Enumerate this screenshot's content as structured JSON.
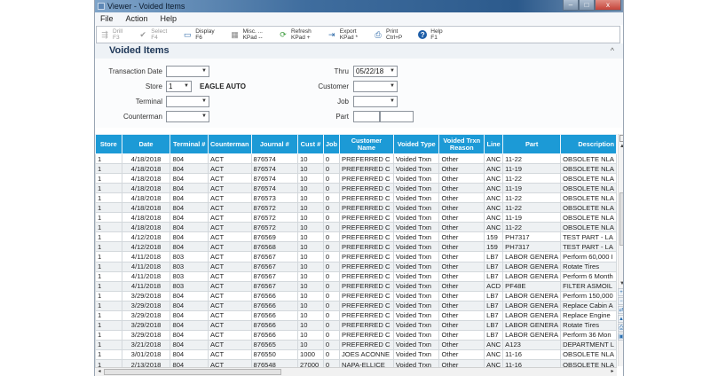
{
  "window": {
    "title": "Viewer - Voided Items",
    "controls": {
      "minimize": "–",
      "maximize": "□",
      "close": "x"
    }
  },
  "menu": [
    "File",
    "Action",
    "Help"
  ],
  "toolbar": [
    {
      "label": "Drill",
      "key": "F3",
      "icon": "drill-icon",
      "glyph": "⇶",
      "disabled": true
    },
    {
      "label": "Select",
      "key": "F4",
      "icon": "checkmark-icon",
      "glyph": "✔",
      "disabled": true
    },
    {
      "label": "Display",
      "key": "F6",
      "icon": "display-icon",
      "glyph": "▭"
    },
    {
      "label": "Misc. ...",
      "key": "KPad --",
      "icon": "grid-icon",
      "glyph": "▦"
    },
    {
      "label": "Refresh",
      "key": "KPad +",
      "icon": "refresh-icon",
      "glyph": "⟳"
    },
    {
      "label": "Export",
      "key": "KPad *",
      "icon": "export-icon",
      "glyph": "⇥"
    },
    {
      "label": "Print",
      "key": "Ctrl+P",
      "icon": "print-icon",
      "glyph": "⎙"
    },
    {
      "label": "Help",
      "key": "F1",
      "icon": "help-icon",
      "glyph": "?"
    }
  ],
  "section": {
    "title": "Voided Items",
    "collapse_glyph": "^"
  },
  "filters": {
    "transaction_date": {
      "label": "Transaction Date",
      "value": ""
    },
    "thru": {
      "label": "Thru",
      "value": "05/22/18"
    },
    "store": {
      "label": "Store",
      "value": "1",
      "name": "EAGLE AUTO"
    },
    "customer": {
      "label": "Customer",
      "value": ""
    },
    "terminal": {
      "label": "Terminal",
      "value": ""
    },
    "job": {
      "label": "Job",
      "value": ""
    },
    "counterman": {
      "label": "Counterman",
      "value": ""
    },
    "part": {
      "label": "Part",
      "value1": "",
      "value2": ""
    },
    "dropdown_glyph": "▼"
  },
  "grid": {
    "columns": [
      "Store",
      "Date",
      "Terminal #",
      "Counterman",
      "Journal #",
      "Cust #",
      "Job",
      "Customer Name",
      "Voided Type",
      "Voided Trxn Reason",
      "Line",
      "Part",
      "Description"
    ],
    "rows": [
      [
        "1",
        "4/18/2018",
        "804",
        "ACT",
        "876574",
        "10",
        "0",
        "PREFERRED C",
        "Voided Trxn",
        "Other",
        "ANC",
        "11-22",
        "OBSOLETE NLA"
      ],
      [
        "1",
        "4/18/2018",
        "804",
        "ACT",
        "876574",
        "10",
        "0",
        "PREFERRED C",
        "Voided Trxn",
        "Other",
        "ANC",
        "11-19",
        "OBSOLETE NLA"
      ],
      [
        "1",
        "4/18/2018",
        "804",
        "ACT",
        "876574",
        "10",
        "0",
        "PREFERRED C",
        "Voided Trxn",
        "Other",
        "ANC",
        "11-22",
        "OBSOLETE NLA"
      ],
      [
        "1",
        "4/18/2018",
        "804",
        "ACT",
        "876574",
        "10",
        "0",
        "PREFERRED C",
        "Voided Trxn",
        "Other",
        "ANC",
        "11-19",
        "OBSOLETE NLA"
      ],
      [
        "1",
        "4/18/2018",
        "804",
        "ACT",
        "876573",
        "10",
        "0",
        "PREFERRED C",
        "Voided Trxn",
        "Other",
        "ANC",
        "11-22",
        "OBSOLETE NLA"
      ],
      [
        "1",
        "4/18/2018",
        "804",
        "ACT",
        "876572",
        "10",
        "0",
        "PREFERRED C",
        "Voided Trxn",
        "Other",
        "ANC",
        "11-22",
        "OBSOLETE NLA"
      ],
      [
        "1",
        "4/18/2018",
        "804",
        "ACT",
        "876572",
        "10",
        "0",
        "PREFERRED C",
        "Voided Trxn",
        "Other",
        "ANC",
        "11-19",
        "OBSOLETE NLA"
      ],
      [
        "1",
        "4/18/2018",
        "804",
        "ACT",
        "876572",
        "10",
        "0",
        "PREFERRED C",
        "Voided Trxn",
        "Other",
        "ANC",
        "11-22",
        "OBSOLETE NLA"
      ],
      [
        "1",
        "4/12/2018",
        "804",
        "ACT",
        "876569",
        "10",
        "0",
        "PREFERRED C",
        "Voided Trxn",
        "Other",
        "159",
        "PH7317",
        "TEST PART - LA"
      ],
      [
        "1",
        "4/12/2018",
        "804",
        "ACT",
        "876568",
        "10",
        "0",
        "PREFERRED C",
        "Voided Trxn",
        "Other",
        "159",
        "PH7317",
        "TEST PART - LA"
      ],
      [
        "1",
        "4/11/2018",
        "803",
        "ACT",
        "876567",
        "10",
        "0",
        "PREFERRED C",
        "Voided Trxn",
        "Other",
        "LB7",
        "LABOR GENERA",
        "Perform 60,000 I"
      ],
      [
        "1",
        "4/11/2018",
        "803",
        "ACT",
        "876567",
        "10",
        "0",
        "PREFERRED C",
        "Voided Trxn",
        "Other",
        "LB7",
        "LABOR GENERA",
        "Rotate Tires"
      ],
      [
        "1",
        "4/11/2018",
        "803",
        "ACT",
        "876567",
        "10",
        "0",
        "PREFERRED C",
        "Voided Trxn",
        "Other",
        "LB7",
        "LABOR GENERA",
        "Perform 6 Month"
      ],
      [
        "1",
        "4/11/2018",
        "803",
        "ACT",
        "876567",
        "10",
        "0",
        "PREFERRED C",
        "Voided Trxn",
        "Other",
        "ACD",
        "PF48E",
        "FILTER ASMOIL"
      ],
      [
        "1",
        "3/29/2018",
        "804",
        "ACT",
        "876566",
        "10",
        "0",
        "PREFERRED C",
        "Voided Trxn",
        "Other",
        "LB7",
        "LABOR GENERA",
        "Perform 150,000"
      ],
      [
        "1",
        "3/29/2018",
        "804",
        "ACT",
        "876566",
        "10",
        "0",
        "PREFERRED C",
        "Voided Trxn",
        "Other",
        "LB7",
        "LABOR GENERA",
        "Replace Cabin A"
      ],
      [
        "1",
        "3/29/2018",
        "804",
        "ACT",
        "876566",
        "10",
        "0",
        "PREFERRED C",
        "Voided Trxn",
        "Other",
        "LB7",
        "LABOR GENERA",
        "Replace Engine"
      ],
      [
        "1",
        "3/29/2018",
        "804",
        "ACT",
        "876566",
        "10",
        "0",
        "PREFERRED C",
        "Voided Trxn",
        "Other",
        "LB7",
        "LABOR GENERA",
        "Rotate Tires"
      ],
      [
        "1",
        "3/29/2018",
        "804",
        "ACT",
        "876566",
        "10",
        "0",
        "PREFERRED C",
        "Voided Trxn",
        "Other",
        "LB7",
        "LABOR GENERA",
        "Perform 36 Mon"
      ],
      [
        "1",
        "3/21/2018",
        "804",
        "ACT",
        "876565",
        "10",
        "0",
        "PREFERRED C",
        "Voided Trxn",
        "Other",
        "ANC",
        "A123",
        "DEPARTMENT L"
      ],
      [
        "1",
        "3/01/2018",
        "804",
        "ACT",
        "876550",
        "1000",
        "0",
        "JOES ACONNE",
        "Voided Trxn",
        "Other",
        "ANC",
        "11-16",
        "OBSOLETE NLA"
      ],
      [
        "1",
        "2/13/2018",
        "804",
        "ACT",
        "876548",
        "27000",
        "0",
        "NAPA-ELLICE",
        "Voided Trxn",
        "Other",
        "ANC",
        "11-16",
        "OBSOLETE NLA"
      ]
    ]
  },
  "side_tools": [
    "+",
    "−",
    "⇄",
    "▲",
    "⎙",
    "▣"
  ],
  "colors": {
    "header_blue": "#1c9ad6",
    "title_bar": "#2c5a8c"
  }
}
